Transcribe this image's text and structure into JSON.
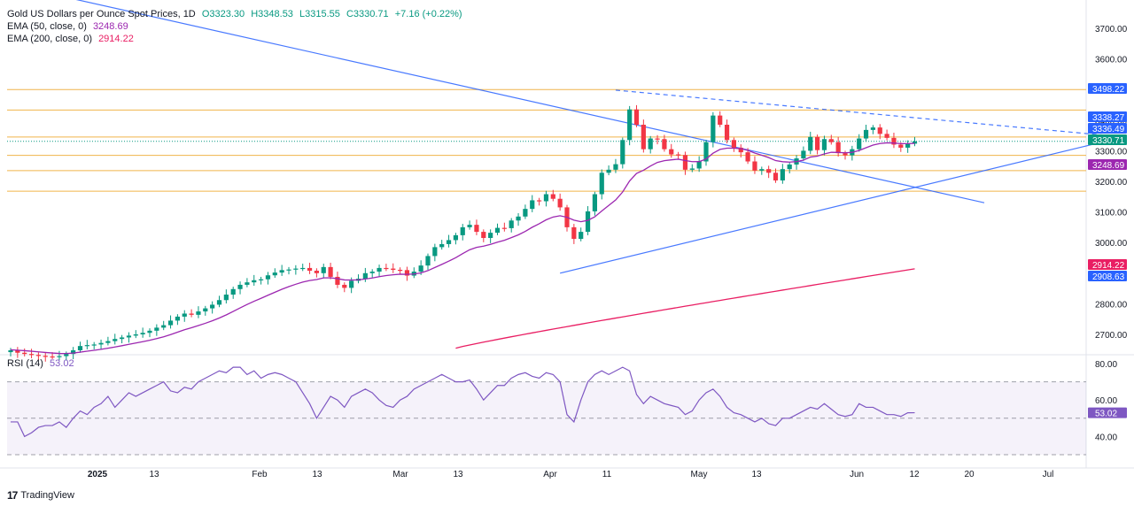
{
  "header": {
    "title": "Gold US Dollars per Ounce Spot Prices, 1D",
    "open": "O3323.30",
    "high": "H3348.53",
    "low": "L3315.55",
    "close": "C3330.71",
    "change": "+7.16 (+0.22%)",
    "ema50_label": "EMA (50, close, 0)",
    "ema50_value": "3248.69",
    "ema200_label": "EMA (200, close, 0)",
    "ema200_value": "2914.22"
  },
  "rsi_label": "RSI (14)",
  "rsi_value": "53.02",
  "branding": "TradingView",
  "colors": {
    "up": "#089981",
    "down": "#f23645",
    "ema50": "#9c27b0",
    "ema200": "#e91e63",
    "trendline": "#2962ff",
    "hlines": "#f0b44a",
    "rsi": "#7e57c2"
  },
  "chart_data": [
    {
      "type": "candlestick",
      "title": "Gold US Dollars per Ounce Spot Prices, 1D",
      "xlabel": "",
      "ylabel": "",
      "x_tick_labels": [
        "2025",
        "13",
        "Feb",
        "13",
        "Mar",
        "13",
        "Apr",
        "11",
        "May",
        "13",
        "Jun",
        "12",
        "20",
        "Jul"
      ],
      "y_tick_labels": [
        "2700.00",
        "2800.00",
        "2900.00",
        "3000.00",
        "3100.00",
        "3200.00",
        "3300.00",
        "3400.00",
        "3500.00",
        "3600.00",
        "3700.00"
      ],
      "ylim": [
        2660,
        3720
      ],
      "grid": false,
      "price_labels": [
        {
          "value": "3498.22",
          "color": "#2962ff"
        },
        {
          "value": "3338.27",
          "color": "#2962ff"
        },
        {
          "value": "3336.49",
          "color": "#2962ff"
        },
        {
          "value": "3330.71",
          "color": "#089981"
        },
        {
          "value": "3248.69",
          "color": "#9c27b0"
        },
        {
          "value": "2914.22",
          "color": "#e91e63"
        },
        {
          "value": "2908.63",
          "color": "#2962ff"
        }
      ],
      "horizontal_levels": [
        3500,
        3433,
        3345,
        3285,
        3235,
        3168
      ],
      "closes": [
        2648,
        2640,
        2636,
        2633,
        2630,
        2628,
        2627,
        2629,
        2636,
        2648,
        2662,
        2665,
        2667,
        2672,
        2678,
        2685,
        2690,
        2696,
        2700,
        2705,
        2712,
        2722,
        2730,
        2745,
        2758,
        2768,
        2764,
        2775,
        2785,
        2797,
        2812,
        2830,
        2848,
        2862,
        2870,
        2877,
        2880,
        2893,
        2902,
        2910,
        2912,
        2915,
        2917,
        2908,
        2900,
        2920,
        2888,
        2862,
        2852,
        2875,
        2882,
        2900,
        2905,
        2917,
        2915,
        2911,
        2910,
        2892,
        2905,
        2925,
        2956,
        2985,
        2995,
        3008,
        3024,
        3050,
        3058,
        3035,
        3015,
        3032,
        3048,
        3047,
        3072,
        3085,
        3110,
        3138,
        3135,
        3158,
        3143,
        3115,
        3050,
        3012,
        3035,
        3102,
        3158,
        3228,
        3238,
        3256,
        3335,
        3435,
        3385,
        3305,
        3340,
        3338,
        3305,
        3288,
        3286,
        3238,
        3242,
        3265,
        3328,
        3415,
        3385,
        3335,
        3310,
        3295,
        3265,
        3235,
        3240,
        3228,
        3203,
        3240,
        3255,
        3275,
        3300,
        3345,
        3302,
        3338,
        3328,
        3292,
        3285,
        3305,
        3340,
        3368,
        3376,
        3355,
        3342,
        3320,
        3310,
        3323,
        3330.71
      ],
      "ema50": {
        "start": 2650,
        "end": 3248.69
      },
      "ema200": {
        "start": 2660,
        "end": 2914.22
      },
      "trendlines": [
        {
          "from": [
            0,
            3842
          ],
          "to": [
            140,
            3130
          ],
          "style": "solid"
        },
        {
          "from": [
            79,
            2900
          ],
          "to": [
            160,
            3345
          ],
          "style": "solid"
        },
        {
          "from": [
            87,
            3498
          ],
          "to": [
            160,
            3345
          ],
          "style": "dashed"
        }
      ]
    },
    {
      "type": "line",
      "title": "RSI (14)",
      "xlabel": "",
      "ylabel": "",
      "y_tick_labels": [
        "40.00",
        "60.00",
        "80.00"
      ],
      "ylim": [
        25,
        85
      ],
      "band": [
        30,
        70
      ],
      "midline": 50,
      "series": [
        {
          "name": "RSI (14)",
          "values": [
            48,
            48,
            40,
            42,
            45,
            46,
            46,
            48,
            45,
            50,
            54,
            52,
            56,
            58,
            62,
            56,
            60,
            64,
            62,
            64,
            66,
            68,
            70,
            65,
            64,
            67,
            66,
            70,
            72,
            74,
            76,
            75,
            78,
            78,
            74,
            76,
            72,
            74,
            75,
            74,
            72,
            70,
            64,
            58,
            50,
            56,
            62,
            60,
            56,
            62,
            64,
            66,
            64,
            60,
            57,
            56,
            60,
            62,
            66,
            68,
            70,
            72,
            74,
            72,
            70,
            70,
            71,
            66,
            60,
            64,
            68,
            68,
            72,
            74,
            75,
            73,
            72,
            75,
            74,
            70,
            52,
            48,
            60,
            70,
            74,
            76,
            74,
            76,
            78,
            76,
            63,
            58,
            62,
            60,
            58,
            57,
            56,
            52,
            54,
            60,
            64,
            66,
            62,
            56,
            53,
            52,
            50,
            48,
            50,
            47,
            46,
            50,
            50,
            52,
            54,
            56,
            55,
            58,
            55,
            52,
            51,
            52,
            58,
            56,
            56,
            54,
            52,
            52,
            51,
            53,
            53.02
          ]
        }
      ]
    }
  ]
}
